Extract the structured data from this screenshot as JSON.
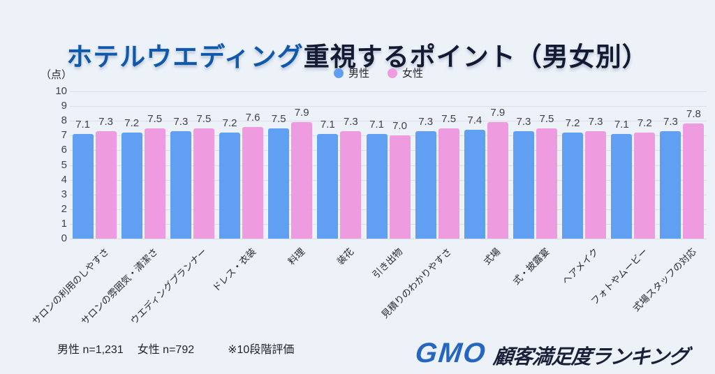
{
  "title": {
    "highlight": "ホテルウエディング",
    "rest": "重視するポイント（男女別）"
  },
  "unit_label": "（点）",
  "legend": [
    {
      "label": "男性",
      "color": "#609ff2"
    },
    {
      "label": "女性",
      "color": "#ef9bdf"
    }
  ],
  "chart_data": {
    "type": "bar",
    "title": "ホテルウエディング重視するポイント（男女別）",
    "ylabel": "（点）",
    "ylim": [
      0,
      10
    ],
    "ytick_step": 1,
    "grid": true,
    "legend_position": "top",
    "value_labels": true,
    "categories": [
      "サロンの利用のしやすさ",
      "サロンの雰囲気・清潔さ",
      "ウエディングプランナー",
      "ドレス・衣装",
      "料理",
      "装花",
      "引き出物",
      "見積りのわかりやすさ",
      "式場",
      "式・披露宴",
      "ヘアメイク",
      "フォトやムービー",
      "式場スタッフの対応"
    ],
    "series": [
      {
        "name": "男性",
        "color": "#609ff2",
        "values": [
          7.1,
          7.2,
          7.3,
          7.2,
          7.5,
          7.1,
          7.1,
          7.3,
          7.4,
          7.3,
          7.2,
          7.1,
          7.3
        ]
      },
      {
        "name": "女性",
        "color": "#ef9bdf",
        "values": [
          7.3,
          7.5,
          7.5,
          7.6,
          7.9,
          7.3,
          7.0,
          7.5,
          7.9,
          7.5,
          7.3,
          7.2,
          7.8
        ]
      }
    ]
  },
  "footer": {
    "male_n": "男性 n=1,231",
    "female_n": "女性 n=792",
    "note": "※10段階評価"
  },
  "logo": {
    "gmo": "GMO",
    "text": "顧客満足度ランキング"
  }
}
